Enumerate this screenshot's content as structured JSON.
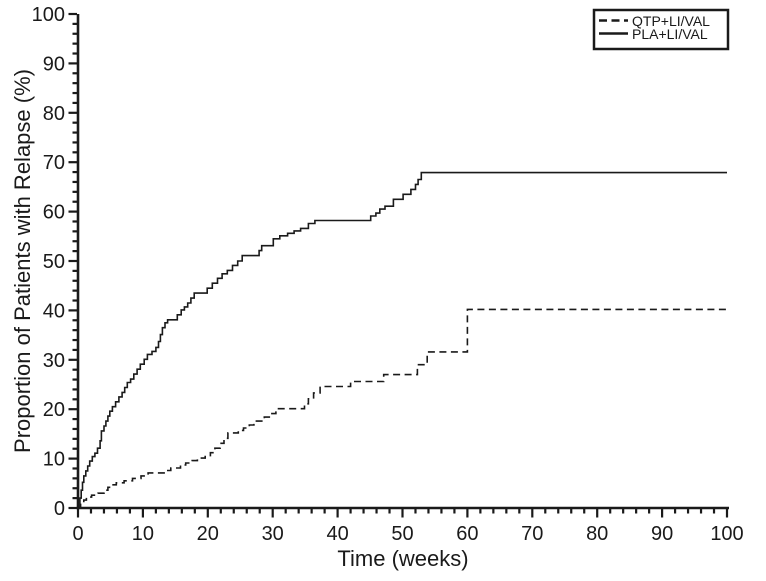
{
  "figure": {
    "background": "#ffffff",
    "line_color": "#1a1a1a"
  },
  "chart_data": {
    "type": "line",
    "subtype": "kaplan-meier-step",
    "title": "",
    "xlabel": "Time (weeks)",
    "ylabel": "Proportion of Patients with Relapse (%)",
    "xlim": [
      0,
      100
    ],
    "ylim": [
      0,
      100
    ],
    "x_major_tick": 10,
    "x_minor_tick": 2,
    "y_major_tick": 10,
    "y_minor_tick": 2,
    "grid": false,
    "legend_position": "top-right",
    "series": [
      {
        "name": "QTP+LI/VAL",
        "line_style": "dashed",
        "color": "#1a1a1a",
        "step": "after",
        "points": [
          [
            0,
            0
          ],
          [
            0.4,
            1
          ],
          [
            0.9,
            1.6
          ],
          [
            1.3,
            2.2
          ],
          [
            2.1,
            2.6
          ],
          [
            3.1,
            3
          ],
          [
            4,
            3.6
          ],
          [
            4.6,
            4.2
          ],
          [
            5.2,
            4.7
          ],
          [
            5.9,
            5.1
          ],
          [
            7.1,
            5.5
          ],
          [
            8.4,
            6
          ],
          [
            9.7,
            6.5
          ],
          [
            10.8,
            7.1
          ],
          [
            13.7,
            7.6
          ],
          [
            14.3,
            8.1
          ],
          [
            15.8,
            8.7
          ],
          [
            16.6,
            9.1
          ],
          [
            17.6,
            9.6
          ],
          [
            18.4,
            10.1
          ],
          [
            19.6,
            10.6
          ],
          [
            20.4,
            11.2
          ],
          [
            21.1,
            12.1
          ],
          [
            21.9,
            13.1
          ],
          [
            22.5,
            14.1
          ],
          [
            23.1,
            15.2
          ],
          [
            24.7,
            15.7
          ],
          [
            25.5,
            16.2
          ],
          [
            26.4,
            16.8
          ],
          [
            27.1,
            17.6
          ],
          [
            28.7,
            18.4
          ],
          [
            29.7,
            19.1
          ],
          [
            30.5,
            20.1
          ],
          [
            34.9,
            21.1
          ],
          [
            35.5,
            22.1
          ],
          [
            36.3,
            23.3
          ],
          [
            37.3,
            24.6
          ],
          [
            42,
            25.6
          ],
          [
            47.1,
            27
          ],
          [
            52.3,
            29
          ],
          [
            53.8,
            31.6
          ],
          [
            60,
            40.2
          ],
          [
            100,
            40.2
          ]
        ]
      },
      {
        "name": "PLA+LI/VAL",
        "line_style": "solid",
        "color": "#1a1a1a",
        "step": "after",
        "points": [
          [
            0,
            0
          ],
          [
            0.3,
            2
          ],
          [
            0.5,
            3.6
          ],
          [
            0.7,
            5.2
          ],
          [
            0.9,
            6.5
          ],
          [
            1.2,
            7.5
          ],
          [
            1.5,
            8.5
          ],
          [
            1.8,
            9.5
          ],
          [
            2.2,
            10.4
          ],
          [
            2.6,
            11.1
          ],
          [
            3,
            12.1
          ],
          [
            3.4,
            13.6
          ],
          [
            3.6,
            15.6
          ],
          [
            4,
            16.6
          ],
          [
            4.3,
            17.6
          ],
          [
            4.6,
            18.6
          ],
          [
            4.9,
            19.6
          ],
          [
            5.3,
            20.5
          ],
          [
            5.8,
            21.5
          ],
          [
            6.3,
            22.5
          ],
          [
            6.8,
            23.4
          ],
          [
            7.2,
            24.4
          ],
          [
            7.6,
            25.4
          ],
          [
            8.1,
            26.1
          ],
          [
            8.6,
            27.1
          ],
          [
            9.1,
            28.1
          ],
          [
            9.6,
            29.1
          ],
          [
            10.2,
            30.1
          ],
          [
            10.7,
            31.1
          ],
          [
            11.4,
            31.7
          ],
          [
            12,
            32.5
          ],
          [
            12.4,
            33.7
          ],
          [
            12.7,
            35.1
          ],
          [
            13,
            36.5
          ],
          [
            13.4,
            37.5
          ],
          [
            13.8,
            38.1
          ],
          [
            15.3,
            39.1
          ],
          [
            15.9,
            40.1
          ],
          [
            16.4,
            40.7
          ],
          [
            16.9,
            41.5
          ],
          [
            17.4,
            42.5
          ],
          [
            17.9,
            43.5
          ],
          [
            19.9,
            44.5
          ],
          [
            20.7,
            45.5
          ],
          [
            21.5,
            46.5
          ],
          [
            22.2,
            47.4
          ],
          [
            23,
            48.1
          ],
          [
            23.8,
            49.1
          ],
          [
            24.6,
            50
          ],
          [
            25.3,
            51.1
          ],
          [
            27.9,
            52.1
          ],
          [
            28.3,
            53.1
          ],
          [
            30.1,
            54.5
          ],
          [
            31.1,
            55.1
          ],
          [
            32.3,
            55.6
          ],
          [
            33.3,
            56.1
          ],
          [
            34.3,
            56.6
          ],
          [
            35.5,
            57.6
          ],
          [
            36.5,
            58.2
          ],
          [
            45.1,
            59.1
          ],
          [
            45.9,
            59.7
          ],
          [
            46.5,
            60.5
          ],
          [
            47.3,
            61.1
          ],
          [
            48.6,
            62.5
          ],
          [
            50.1,
            63.5
          ],
          [
            51.3,
            64.5
          ],
          [
            52,
            65.5
          ],
          [
            52.4,
            66.5
          ],
          [
            52.9,
            67.9
          ],
          [
            100,
            67.9
          ]
        ]
      }
    ]
  }
}
